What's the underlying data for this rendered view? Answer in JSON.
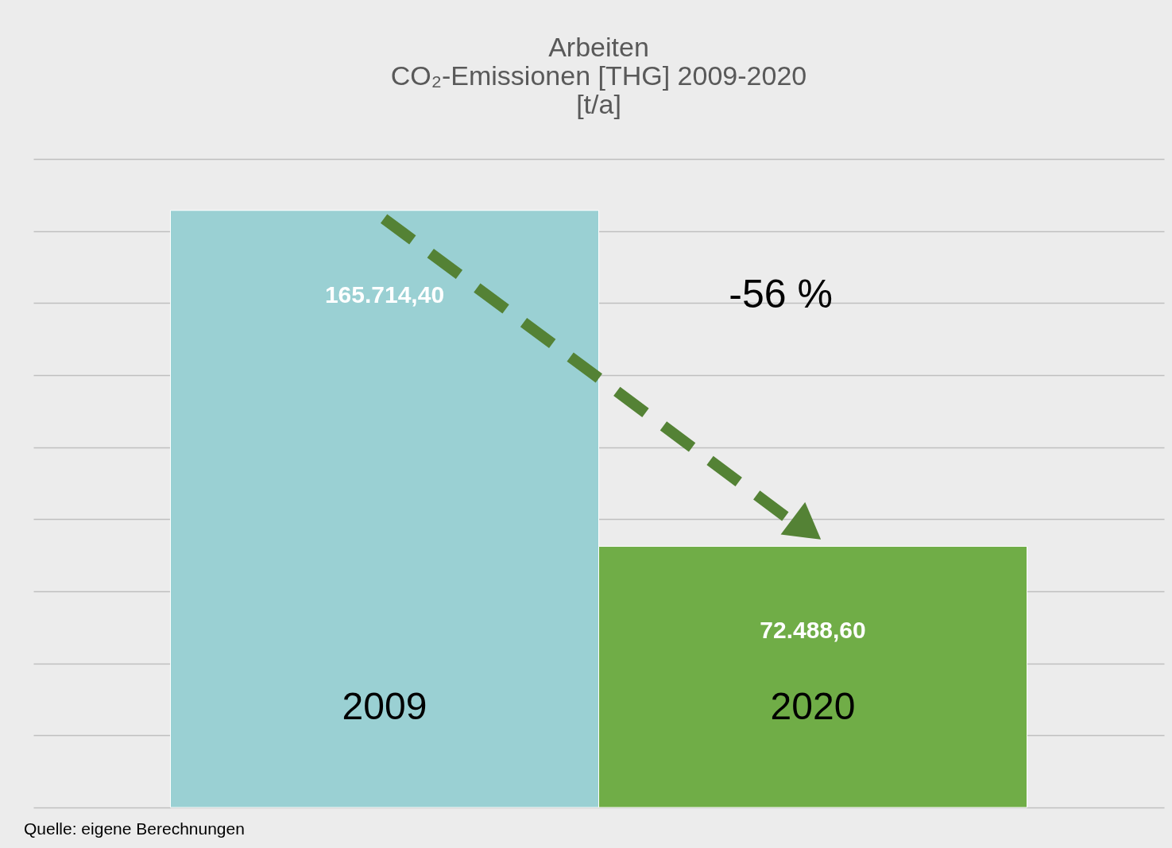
{
  "chart_data": {
    "type": "bar",
    "title": [
      "Arbeiten",
      "CO₂-Emissionen [THG] 2009-2020",
      "[t/a]"
    ],
    "categories": [
      "2009",
      "2020"
    ],
    "values": [
      165714.4,
      72488.6
    ],
    "colors": [
      "#9ad0d3",
      "#70ad47"
    ],
    "value_labels": [
      "165.714,40",
      "72.488,60"
    ],
    "ylim": [
      0,
      180000
    ],
    "yticks": [
      {
        "value": 0,
        "label": null
      },
      {
        "value": 20000,
        "label": null
      },
      {
        "value": 40000,
        "label": null
      },
      {
        "value": 60000,
        "label": null
      },
      {
        "value": 80000,
        "label": null
      },
      {
        "value": 100000,
        "label": null
      },
      {
        "value": 120000,
        "label": null
      },
      {
        "value": 140000,
        "label": null
      },
      {
        "value": 160000,
        "label": null
      },
      {
        "value": 180000,
        "label": null
      }
    ],
    "tick_labels": "x",
    "grid": "y",
    "annotations": [
      "-56 %",
      "Quelle: eigene Berechnungen"
    ]
  }
}
